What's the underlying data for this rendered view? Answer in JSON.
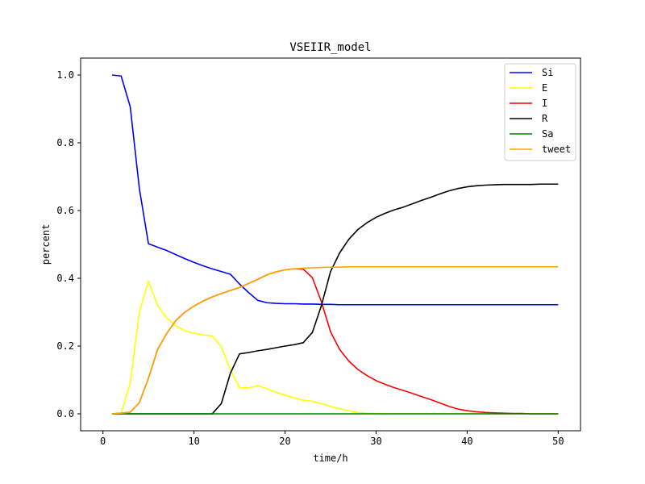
{
  "chart_data": {
    "type": "line",
    "title": "VSEIIR_model",
    "xlabel": "time/h",
    "ylabel": "percent",
    "xlim": [
      -2.45,
      52.45
    ],
    "ylim": [
      -0.05,
      1.05
    ],
    "xticks": [
      0,
      10,
      20,
      30,
      40,
      50
    ],
    "yticks": [
      0.0,
      0.2,
      0.4,
      0.6,
      0.8,
      1.0
    ],
    "xtick_labels": [
      "0",
      "10",
      "20",
      "30",
      "40",
      "50"
    ],
    "ytick_labels": [
      "0.0",
      "0.2",
      "0.4",
      "0.6",
      "0.8",
      "1.0"
    ],
    "grid": false,
    "legend_position": "top-right",
    "x": [
      1,
      2,
      3,
      4,
      5,
      6,
      7,
      8,
      9,
      10,
      11,
      12,
      13,
      14,
      15,
      16,
      17,
      18,
      19,
      20,
      21,
      22,
      23,
      24,
      25,
      26,
      27,
      28,
      29,
      30,
      31,
      32,
      33,
      34,
      35,
      36,
      37,
      38,
      39,
      40,
      41,
      42,
      43,
      44,
      45,
      46,
      47,
      48,
      49,
      50
    ],
    "series": [
      {
        "name": "Si",
        "color": "#0000ff",
        "values": [
          1.0,
          0.997,
          0.906,
          0.665,
          0.502,
          0.492,
          0.482,
          0.47,
          0.458,
          0.447,
          0.437,
          0.428,
          0.42,
          0.412,
          0.383,
          0.358,
          0.335,
          0.328,
          0.326,
          0.325,
          0.325,
          0.324,
          0.324,
          0.323,
          0.323,
          0.322,
          0.322,
          0.322,
          0.322,
          0.322,
          0.322,
          0.322,
          0.322,
          0.322,
          0.322,
          0.322,
          0.322,
          0.322,
          0.322,
          0.322,
          0.322,
          0.322,
          0.322,
          0.322,
          0.322,
          0.322,
          0.322,
          0.322,
          0.322,
          0.322
        ]
      },
      {
        "name": "E",
        "color": "#ffff00",
        "values": [
          0.0,
          0.003,
          0.09,
          0.3,
          0.392,
          0.32,
          0.283,
          0.26,
          0.245,
          0.238,
          0.233,
          0.23,
          0.198,
          0.13,
          0.077,
          0.076,
          0.083,
          0.074,
          0.064,
          0.055,
          0.047,
          0.04,
          0.037,
          0.03,
          0.022,
          0.015,
          0.009,
          0.004,
          0.002,
          0.001,
          0.0,
          0.0,
          0.0,
          0.0,
          0.0,
          0.0,
          0.0,
          0.0,
          0.0,
          0.0,
          0.0,
          0.0,
          0.0,
          0.0,
          0.0,
          0.0,
          0.0,
          0.0,
          0.0,
          0.0
        ]
      },
      {
        "name": "I",
        "color": "#ff0000",
        "values": [
          0.0,
          0.002,
          0.005,
          0.033,
          0.105,
          0.19,
          0.237,
          0.275,
          0.3,
          0.318,
          0.333,
          0.345,
          0.355,
          0.364,
          0.373,
          0.385,
          0.397,
          0.41,
          0.419,
          0.425,
          0.428,
          0.427,
          0.402,
          0.33,
          0.242,
          0.19,
          0.156,
          0.131,
          0.113,
          0.098,
          0.087,
          0.077,
          0.069,
          0.06,
          0.051,
          0.042,
          0.032,
          0.022,
          0.014,
          0.009,
          0.006,
          0.004,
          0.003,
          0.002,
          0.001,
          0.001,
          0.0,
          0.0,
          0.0,
          0.0
        ]
      },
      {
        "name": "R",
        "color": "#000000",
        "values": [
          0.0,
          0.0,
          0.0,
          0.0,
          0.0,
          0.0,
          0.0,
          0.0,
          0.0,
          0.0,
          0.0,
          0.0,
          0.03,
          0.12,
          0.177,
          0.181,
          0.186,
          0.19,
          0.195,
          0.2,
          0.204,
          0.21,
          0.24,
          0.32,
          0.42,
          0.475,
          0.515,
          0.544,
          0.564,
          0.58,
          0.592,
          0.602,
          0.61,
          0.62,
          0.63,
          0.639,
          0.649,
          0.658,
          0.665,
          0.67,
          0.673,
          0.675,
          0.676,
          0.677,
          0.677,
          0.677,
          0.677,
          0.678,
          0.678,
          0.678
        ]
      },
      {
        "name": "Sa",
        "color": "#008000",
        "values": [
          0.0,
          0.0,
          0.0,
          0.0,
          0.0,
          0.0,
          0.0,
          0.0,
          0.0,
          0.0,
          0.0,
          0.0,
          0.0,
          0.0,
          0.0,
          0.0,
          0.0,
          0.0,
          0.0,
          0.0,
          0.0,
          0.0,
          0.0,
          0.0,
          0.0,
          0.0,
          0.0,
          0.0,
          0.0,
          0.0,
          0.0,
          0.0,
          0.0,
          0.0,
          0.0,
          0.0,
          0.0,
          0.0,
          0.0,
          0.0,
          0.0,
          0.0,
          0.0,
          0.0,
          0.0,
          0.0,
          0.0,
          0.0,
          0.0,
          0.0
        ]
      },
      {
        "name": "tweet",
        "color": "#ffa500",
        "values": [
          0.0,
          0.002,
          0.005,
          0.033,
          0.105,
          0.19,
          0.237,
          0.275,
          0.3,
          0.318,
          0.333,
          0.345,
          0.355,
          0.364,
          0.373,
          0.385,
          0.397,
          0.41,
          0.419,
          0.425,
          0.428,
          0.43,
          0.431,
          0.432,
          0.433,
          0.433,
          0.434,
          0.434,
          0.434,
          0.434,
          0.434,
          0.434,
          0.434,
          0.434,
          0.434,
          0.434,
          0.434,
          0.434,
          0.434,
          0.434,
          0.434,
          0.434,
          0.434,
          0.434,
          0.434,
          0.434,
          0.434,
          0.434,
          0.434,
          0.434
        ]
      }
    ]
  }
}
